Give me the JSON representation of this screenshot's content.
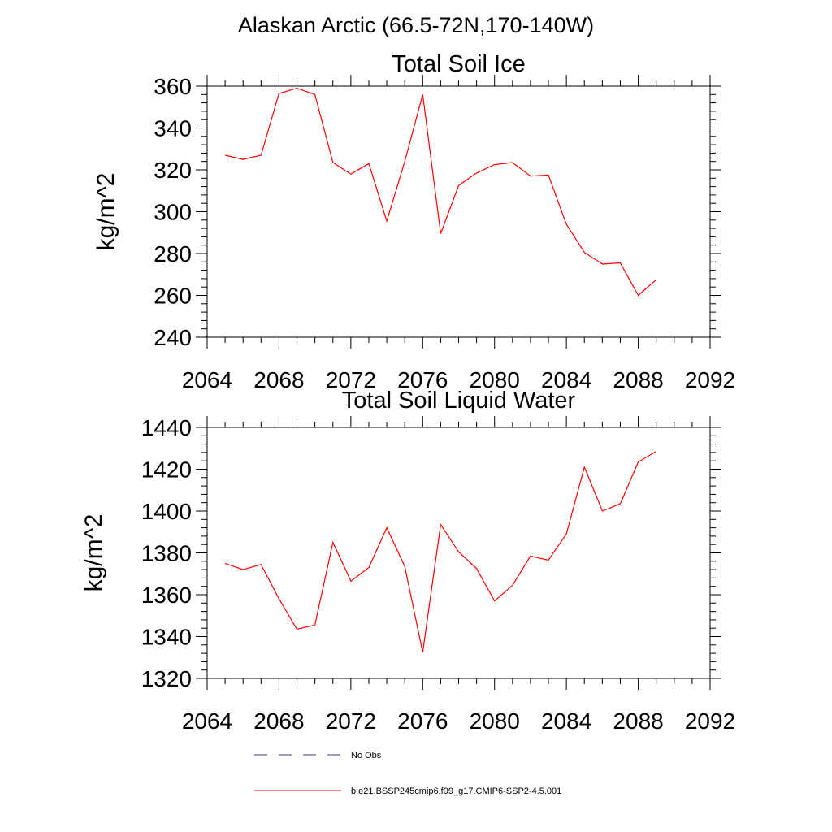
{
  "figure": {
    "suptitle": "Alaskan Arctic (66.5-72N,170-140W)"
  },
  "chart_data": [
    {
      "type": "line",
      "title": "Total Soil Ice",
      "xlabel": "",
      "ylabel": "kg/m^2",
      "xlim": [
        2064,
        2092
      ],
      "ylim": [
        240,
        360
      ],
      "xticks": [
        2064,
        2068,
        2072,
        2076,
        2080,
        2084,
        2088,
        2092
      ],
      "yticks": [
        240,
        260,
        280,
        300,
        320,
        340,
        360
      ],
      "grid": false,
      "series": [
        {
          "name": "b.e21.BSSP245cmip6.f09_g17.CMIP6-SSP2-4.5.001",
          "color": "#ff0000",
          "x": [
            2065,
            2066,
            2067,
            2068,
            2069,
            2070,
            2071,
            2072,
            2073,
            2074,
            2075,
            2076,
            2077,
            2078,
            2079,
            2080,
            2081,
            2082,
            2083,
            2084,
            2085,
            2086,
            2087,
            2088,
            2089
          ],
          "values": [
            327.0,
            325.0,
            327.0,
            356.5,
            359.0,
            356.0,
            323.5,
            318.0,
            323.0,
            295.5,
            324.0,
            356.0,
            289.5,
            312.5,
            318.5,
            322.5,
            323.5,
            317.0,
            317.5,
            294.0,
            280.5,
            275.0,
            275.5,
            260.0,
            267.5
          ]
        }
      ]
    },
    {
      "type": "line",
      "title": "Total Soil Liquid Water",
      "xlabel": "",
      "ylabel": "kg/m^2",
      "xlim": [
        2064,
        2092
      ],
      "ylim": [
        1320,
        1440
      ],
      "xticks": [
        2064,
        2068,
        2072,
        2076,
        2080,
        2084,
        2088,
        2092
      ],
      "yticks": [
        1320,
        1340,
        1360,
        1380,
        1400,
        1420,
        1440
      ],
      "grid": false,
      "series": [
        {
          "name": "b.e21.BSSP245cmip6.f09_g17.CMIP6-SSP2-4.5.001",
          "color": "#ff0000",
          "x": [
            2065,
            2066,
            2067,
            2068,
            2069,
            2070,
            2071,
            2072,
            2073,
            2074,
            2075,
            2076,
            2077,
            2078,
            2079,
            2080,
            2081,
            2082,
            2083,
            2084,
            2085,
            2086,
            2087,
            2088,
            2089
          ],
          "values": [
            1375.0,
            1372.0,
            1374.5,
            1358.0,
            1343.5,
            1345.5,
            1385.0,
            1366.5,
            1373.0,
            1392.0,
            1373.5,
            1332.5,
            1393.5,
            1380.5,
            1372.5,
            1357.0,
            1364.5,
            1378.5,
            1376.5,
            1389.0,
            1421.0,
            1400.0,
            1403.5,
            1423.5,
            1428.5
          ]
        }
      ]
    }
  ],
  "legend": {
    "placement": "bottom",
    "items": [
      {
        "label": "No Obs",
        "color": "#3a3a8c",
        "dash": "dashed"
      },
      {
        "label": "b.e21.BSSP245cmip6.f09_g17.CMIP6-SSP2-4.5.001",
        "color": "#ff0000",
        "dash": "solid"
      }
    ]
  }
}
